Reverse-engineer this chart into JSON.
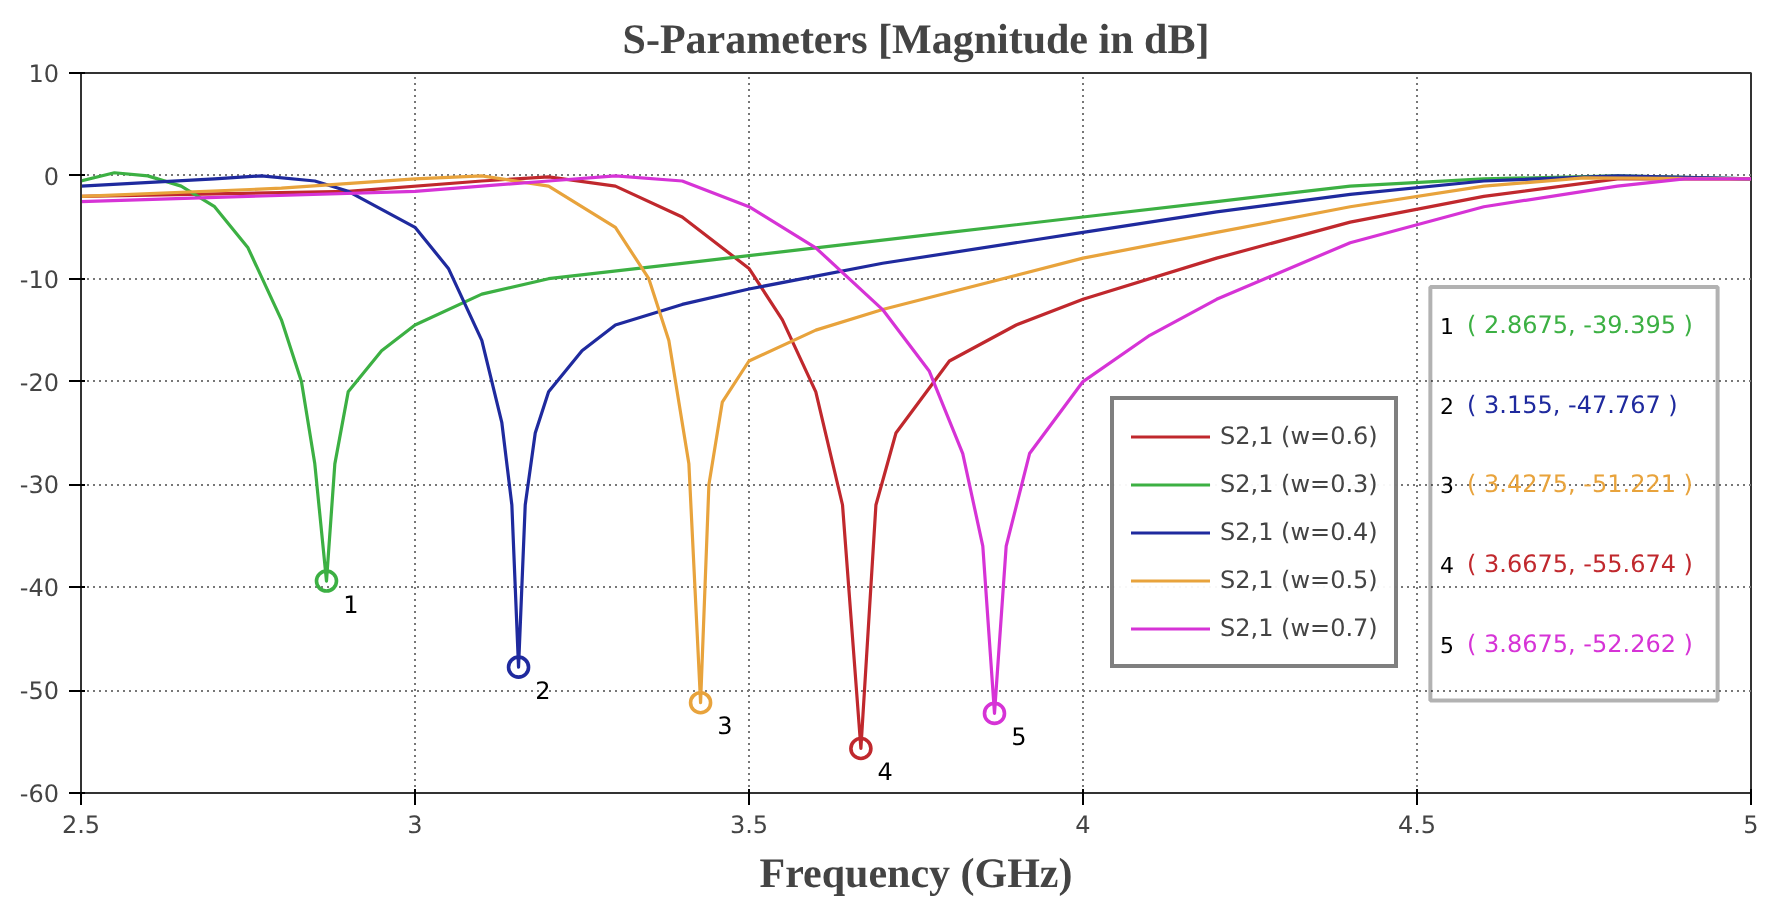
{
  "chart_data": {
    "type": "line",
    "title": "S-Parameters [Magnitude in dB]",
    "xlabel": "Frequency (GHz)",
    "xlim": [
      2.5,
      5
    ],
    "ylim": [
      -60,
      10
    ],
    "xticks": [
      2.5,
      3,
      3.5,
      4,
      4.5,
      5
    ],
    "yticks": [
      -60,
      -50,
      -40,
      -30,
      -20,
      -10,
      0,
      10
    ],
    "grid": true,
    "legend": "right",
    "line_style": "solid",
    "series": [
      {
        "name": "S2,1 (w=0.6)",
        "color": "#c0282d",
        "x": [
          2.5,
          2.9,
          3.1,
          3.2,
          3.3,
          3.4,
          3.5,
          3.55,
          3.6,
          3.64,
          3.6675,
          3.69,
          3.72,
          3.8,
          3.9,
          4.0,
          4.2,
          4.4,
          4.6,
          4.8,
          5.0
        ],
        "values": [
          -2,
          -1.5,
          -0.5,
          -0.1,
          -1,
          -4,
          -9,
          -14,
          -21,
          -32,
          -55.674,
          -32,
          -25,
          -18,
          -14.5,
          -12,
          -8,
          -4.5,
          -2,
          -0.3,
          -0.3
        ]
      },
      {
        "name": "S2,1 (w=0.3)",
        "color": "#3cb043",
        "x": [
          2.5,
          2.55,
          2.6,
          2.65,
          2.7,
          2.75,
          2.8,
          2.83,
          2.85,
          2.8675,
          2.88,
          2.9,
          2.95,
          3.0,
          3.1,
          3.2,
          3.4,
          3.6,
          3.8,
          4.0,
          4.2,
          4.4,
          4.6,
          4.8,
          5.0
        ],
        "values": [
          -0.5,
          0.3,
          0,
          -1,
          -3,
          -7,
          -14,
          -20,
          -28,
          -39.395,
          -28,
          -21,
          -17,
          -14.5,
          -11.5,
          -10,
          -8.5,
          -7,
          -5.5,
          -4,
          -2.5,
          -1,
          -0.3,
          0,
          -0.3
        ]
      },
      {
        "name": "S2,1 (w=0.4)",
        "color": "#1f2a9e",
        "x": [
          2.5,
          2.7,
          2.77,
          2.85,
          2.9,
          3.0,
          3.05,
          3.1,
          3.13,
          3.145,
          3.155,
          3.165,
          3.18,
          3.2,
          3.25,
          3.3,
          3.4,
          3.5,
          3.7,
          4.0,
          4.2,
          4.4,
          4.6,
          4.8,
          5.0
        ],
        "values": [
          -1,
          -0.3,
          0,
          -0.5,
          -1.5,
          -5,
          -9,
          -16,
          -24,
          -32,
          -47.767,
          -32,
          -25,
          -21,
          -17,
          -14.5,
          -12.5,
          -11,
          -8.5,
          -5.5,
          -3.5,
          -1.8,
          -0.5,
          0,
          -0.3
        ]
      },
      {
        "name": "S2,1 (w=0.5)",
        "color": "#e8a33c",
        "x": [
          2.5,
          2.8,
          3.0,
          3.1,
          3.2,
          3.3,
          3.35,
          3.38,
          3.41,
          3.4275,
          3.44,
          3.46,
          3.5,
          3.6,
          3.7,
          4.0,
          4.2,
          4.4,
          4.6,
          4.75,
          5.0
        ],
        "values": [
          -2,
          -1.2,
          -0.3,
          0,
          -1,
          -5,
          -10,
          -16,
          -28,
          -51.221,
          -30,
          -22,
          -18,
          -15,
          -13,
          -8,
          -5.5,
          -3,
          -1,
          -0.2,
          -0.3
        ]
      },
      {
        "name": "S2,1 (w=0.7)",
        "color": "#d633d6",
        "x": [
          2.5,
          3.0,
          3.2,
          3.3,
          3.4,
          3.5,
          3.6,
          3.7,
          3.77,
          3.82,
          3.85,
          3.8675,
          3.885,
          3.92,
          4.0,
          4.1,
          4.2,
          4.4,
          4.6,
          4.8,
          4.9,
          5.0
        ],
        "values": [
          -2.5,
          -1.5,
          -0.5,
          0,
          -0.5,
          -3,
          -7,
          -13,
          -19,
          -27,
          -36,
          -52.262,
          -36,
          -27,
          -20,
          -15.5,
          -12,
          -6.5,
          -3,
          -1,
          -0.3,
          -0.3
        ]
      }
    ],
    "annotations": [
      {
        "text": "1",
        "x": 2.8675,
        "y": -39.395
      },
      {
        "text": "2",
        "x": 3.155,
        "y": -47.767
      },
      {
        "text": "3",
        "x": 3.4275,
        "y": -51.221
      },
      {
        "text": "4",
        "x": 3.6675,
        "y": -55.674
      },
      {
        "text": "5",
        "x": 3.8675,
        "y": -52.262
      },
      "( 2.8675, -39.395 )",
      "( 3.155, -47.767 )",
      "( 3.4275, -51.221 )",
      "( 3.6675, -55.674 )",
      "( 3.8675, -52.262 )"
    ]
  }
}
